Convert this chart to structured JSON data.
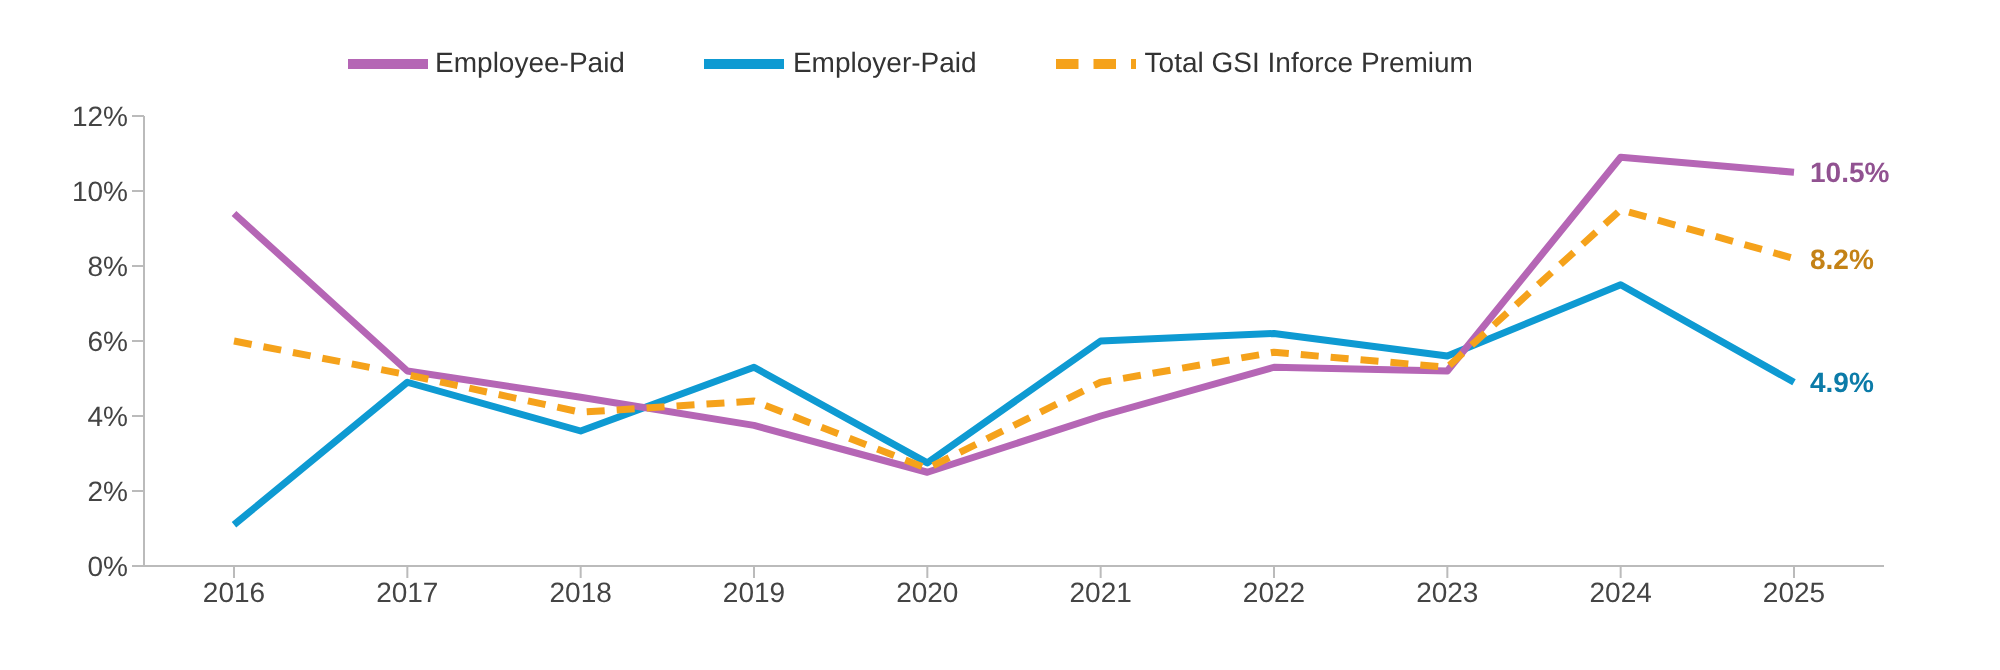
{
  "chart_data": {
    "type": "line",
    "categories": [
      "2016",
      "2017",
      "2018",
      "2019",
      "2020",
      "2021",
      "2022",
      "2023",
      "2024",
      "2025"
    ],
    "series": [
      {
        "name": "Employer-Paid",
        "color": "#0e9ad2",
        "values": [
          1.1,
          4.9,
          3.6,
          5.3,
          2.75,
          6.0,
          6.2,
          5.6,
          7.5,
          4.9
        ],
        "value_labels": [
          null,
          null,
          null,
          null,
          null,
          null,
          null,
          null,
          null,
          "4.9%"
        ]
      },
      {
        "name": "Employee-Paid",
        "color": "#b566b5",
        "values": [
          9.4,
          5.2,
          4.5,
          3.75,
          2.5,
          4.0,
          5.3,
          5.2,
          10.9,
          10.5
        ],
        "value_labels": [
          null,
          null,
          null,
          null,
          null,
          null,
          null,
          null,
          null,
          "10.5%"
        ]
      },
      {
        "name": "Total GSI Inforce Premium",
        "color": "#f5a21b",
        "line_style": "dashed",
        "values": [
          6.0,
          5.1,
          4.1,
          4.4,
          2.6,
          4.9,
          5.7,
          5.3,
          9.5,
          8.2
        ],
        "value_labels": [
          null,
          null,
          null,
          null,
          null,
          null,
          null,
          null,
          null,
          "8.2%"
        ]
      }
    ],
    "ylim": [
      0,
      12
    ],
    "yticks": [
      {
        "value": 0,
        "label": "0%"
      },
      {
        "value": 2,
        "label": "2%"
      },
      {
        "value": 4,
        "label": "4%"
      },
      {
        "value": 6,
        "label": "6%"
      },
      {
        "value": 8,
        "label": "8%"
      },
      {
        "value": 10,
        "label": "10%"
      },
      {
        "value": 12,
        "label": "12%"
      }
    ],
    "grid": false,
    "legend": "top",
    "marker": "none"
  }
}
